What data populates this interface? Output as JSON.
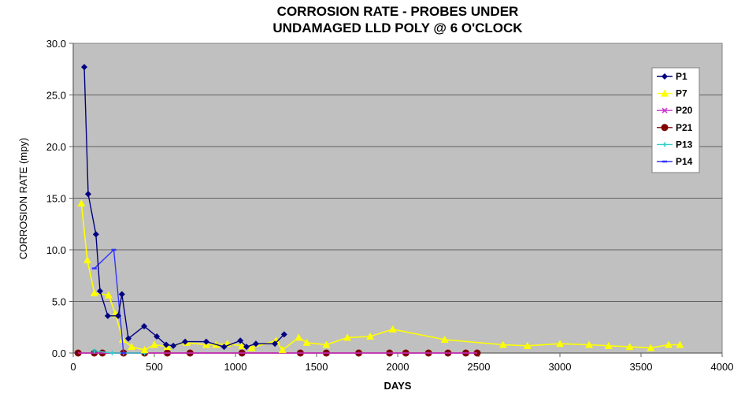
{
  "title": {
    "line1": "CORROSION RATE - PROBES UNDER",
    "line2": "UNDAMAGED LLD POLY @ 6 O'CLOCK"
  },
  "chart_data": {
    "type": "line",
    "title": "CORROSION RATE - PROBES UNDER UNDAMAGED LLD POLY @ 6 O'CLOCK",
    "xlabel": "DAYS",
    "ylabel": "CORROSION RATE (mpy)",
    "xlim": [
      0,
      4000
    ],
    "ylim": [
      0,
      30
    ],
    "xticks": [
      0,
      500,
      1000,
      1500,
      2000,
      2500,
      3000,
      3500,
      4000
    ],
    "yticks": [
      "0.0",
      "5.0",
      "10.0",
      "15.0",
      "20.0",
      "25.0",
      "30.0"
    ],
    "grid": "horizontal",
    "plot_background": "#c0c0c0",
    "legend_position": "upper right inside",
    "series": [
      {
        "name": "P1",
        "color": "#000080",
        "marker": "diamond",
        "x": [
          68,
          92,
          140,
          165,
          213,
          277,
          300,
          340,
          437,
          515,
          573,
          617,
          690,
          820,
          930,
          1030,
          1068,
          1126,
          1243,
          1300
        ],
        "y": [
          27.7,
          15.4,
          11.5,
          6.0,
          3.6,
          3.6,
          5.7,
          1.4,
          2.6,
          1.6,
          0.8,
          0.7,
          1.1,
          1.1,
          0.6,
          1.2,
          0.6,
          0.9,
          0.9,
          1.8
        ]
      },
      {
        "name": "P7",
        "color": "#ffff00",
        "marker": "triangle",
        "x": [
          50,
          87,
          130,
          218,
          260,
          305,
          360,
          440,
          500,
          580,
          700,
          820,
          880,
          950,
          1040,
          1100,
          1250,
          1290,
          1390,
          1440,
          1560,
          1690,
          1830,
          1970,
          2290,
          2650,
          2800,
          3000,
          3180,
          3300,
          3430,
          3560,
          3670,
          3740
        ],
        "y": [
          14.5,
          9.0,
          5.8,
          5.6,
          3.8,
          1.3,
          0.6,
          0.3,
          0.8,
          0.6,
          1.0,
          0.8,
          0.8,
          0.9,
          0.7,
          0.5,
          1.2,
          0.3,
          1.5,
          1.0,
          0.8,
          1.5,
          1.6,
          2.3,
          1.3,
          0.8,
          0.7,
          0.9,
          0.8,
          0.7,
          0.6,
          0.5,
          0.8,
          0.8
        ]
      },
      {
        "name": "P20",
        "color": "#cc33cc",
        "marker": "x",
        "x": [
          30,
          2490
        ],
        "y": [
          0.0,
          0.0
        ]
      },
      {
        "name": "P21",
        "color": "#800000",
        "marker": "circle",
        "x": [
          30,
          130,
          180,
          310,
          440,
          580,
          720,
          1040,
          1400,
          1560,
          1760,
          1950,
          2050,
          2190,
          2310,
          2420,
          2490
        ],
        "y": [
          0,
          0,
          0,
          0,
          0,
          0,
          0,
          0,
          0,
          0,
          0,
          0,
          0,
          0,
          0,
          0,
          0
        ]
      },
      {
        "name": "P13",
        "color": "#33cccc",
        "marker": "plus",
        "x": [
          130,
          240,
          310,
          440
        ],
        "y": [
          0.2,
          0.0,
          0.0,
          0.0
        ]
      },
      {
        "name": "P14",
        "color": "#3333ff",
        "marker": "dash",
        "x": [
          130,
          250,
          310
        ],
        "y": [
          8.2,
          10.0,
          0.0
        ]
      }
    ]
  }
}
